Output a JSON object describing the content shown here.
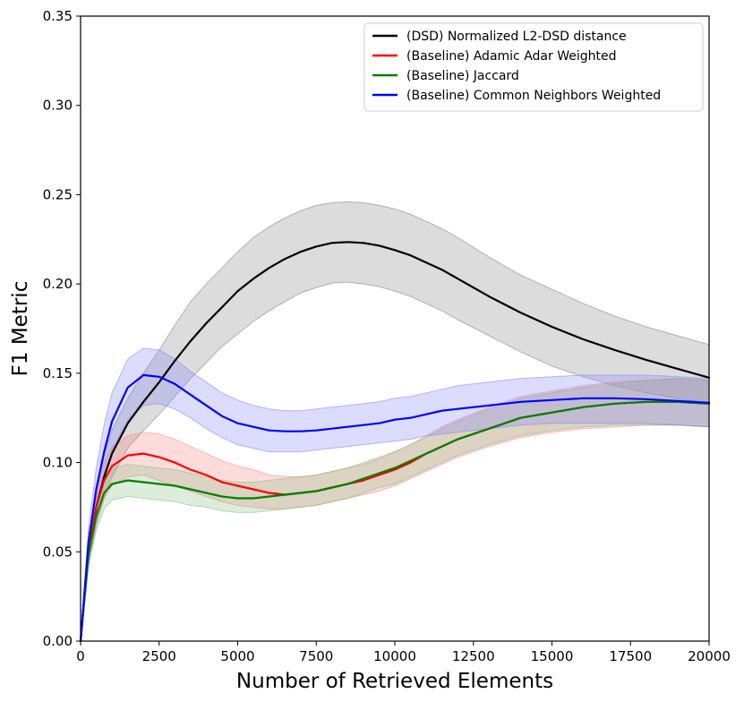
{
  "chart_data": {
    "type": "line",
    "title": "",
    "xlabel": "Number of Retrieved Elements",
    "ylabel": "F1 Metric",
    "xlim": [
      0,
      20000
    ],
    "ylim": [
      0,
      0.35
    ],
    "xticks": [
      0,
      2500,
      5000,
      7500,
      10000,
      12500,
      15000,
      17500,
      20000
    ],
    "yticks": [
      0.0,
      0.05,
      0.1,
      0.15,
      0.2,
      0.25,
      0.3,
      0.35
    ],
    "xtick_labels": [
      "0",
      "2500",
      "5000",
      "7500",
      "10000",
      "12500",
      "15000",
      "17500",
      "20000"
    ],
    "ytick_labels": [
      "0.00",
      "0.05",
      "0.10",
      "0.15",
      "0.20",
      "0.25",
      "0.30",
      "0.35"
    ],
    "grid": false,
    "legend_position": "top-right",
    "series": [
      {
        "name": "(DSD) Normalized L2-DSD distance",
        "color": "#000000",
        "band_color": "#808080",
        "x": [
          0,
          250,
          500,
          750,
          1000,
          1500,
          2000,
          2500,
          3000,
          3500,
          4000,
          4500,
          5000,
          5500,
          6000,
          6500,
          7000,
          7500,
          8000,
          8500,
          9000,
          9500,
          10000,
          10500,
          11000,
          11500,
          12000,
          13000,
          14000,
          15000,
          16000,
          17000,
          18000,
          19000,
          20000
        ],
        "values": [
          0.0,
          0.05,
          0.075,
          0.092,
          0.105,
          0.122,
          0.134,
          0.145,
          0.157,
          0.168,
          0.178,
          0.187,
          0.196,
          0.203,
          0.209,
          0.214,
          0.218,
          0.221,
          0.223,
          0.2235,
          0.223,
          0.2215,
          0.219,
          0.216,
          0.212,
          0.208,
          0.203,
          0.193,
          0.184,
          0.176,
          0.169,
          0.163,
          0.1575,
          0.1525,
          0.1475
        ],
        "lower": [
          0.0,
          0.042,
          0.065,
          0.08,
          0.092,
          0.108,
          0.118,
          0.127,
          0.137,
          0.147,
          0.156,
          0.165,
          0.172,
          0.179,
          0.185,
          0.19,
          0.195,
          0.198,
          0.2005,
          0.201,
          0.2,
          0.1985,
          0.196,
          0.193,
          0.189,
          0.185,
          0.18,
          0.171,
          0.162,
          0.154,
          0.148,
          0.143,
          0.139,
          0.136,
          0.133
        ],
        "upper": [
          0.0,
          0.058,
          0.085,
          0.104,
          0.118,
          0.136,
          0.15,
          0.163,
          0.177,
          0.19,
          0.2,
          0.209,
          0.218,
          0.226,
          0.232,
          0.237,
          0.241,
          0.244,
          0.2455,
          0.246,
          0.2455,
          0.244,
          0.242,
          0.239,
          0.235,
          0.231,
          0.226,
          0.215,
          0.205,
          0.197,
          0.189,
          0.182,
          0.176,
          0.171,
          0.166
        ]
      },
      {
        "name": "(Baseline) Adamic Adar Weighted",
        "color": "#ff0000",
        "band_color": "#ff8080",
        "x": [
          0,
          250,
          500,
          750,
          1000,
          1500,
          2000,
          2500,
          3000,
          3500,
          4000,
          4500,
          5000,
          5500,
          6000,
          6500,
          7000,
          7500,
          8000,
          8500,
          9000,
          9500,
          10000,
          10500,
          11000,
          11500,
          12000,
          13000,
          14000,
          15000,
          16000,
          17000,
          18000,
          19000,
          20000
        ],
        "values": [
          0.0,
          0.05,
          0.075,
          0.09,
          0.098,
          0.104,
          0.105,
          0.103,
          0.1,
          0.096,
          0.093,
          0.089,
          0.087,
          0.085,
          0.083,
          0.082,
          0.083,
          0.084,
          0.086,
          0.088,
          0.09,
          0.093,
          0.096,
          0.1,
          0.105,
          0.109,
          0.113,
          0.119,
          0.125,
          0.128,
          0.131,
          0.133,
          0.134,
          0.134,
          0.133
        ],
        "lower": [
          0.0,
          0.043,
          0.067,
          0.08,
          0.087,
          0.092,
          0.093,
          0.09,
          0.087,
          0.084,
          0.081,
          0.078,
          0.076,
          0.075,
          0.074,
          0.074,
          0.075,
          0.076,
          0.078,
          0.08,
          0.082,
          0.084,
          0.087,
          0.091,
          0.095,
          0.099,
          0.103,
          0.109,
          0.114,
          0.117,
          0.119,
          0.12,
          0.121,
          0.121,
          0.12
        ],
        "upper": [
          0.0,
          0.057,
          0.084,
          0.1,
          0.109,
          0.115,
          0.117,
          0.116,
          0.113,
          0.109,
          0.105,
          0.101,
          0.098,
          0.096,
          0.093,
          0.092,
          0.092,
          0.093,
          0.095,
          0.097,
          0.099,
          0.102,
          0.106,
          0.11,
          0.115,
          0.12,
          0.124,
          0.131,
          0.137,
          0.14,
          0.143,
          0.145,
          0.146,
          0.147,
          0.146
        ]
      },
      {
        "name": "(Baseline) Jaccard",
        "color": "#008000",
        "band_color": "#80c080",
        "x": [
          0,
          250,
          500,
          750,
          1000,
          1500,
          2000,
          2500,
          3000,
          3500,
          4000,
          4500,
          5000,
          5500,
          6000,
          6500,
          7000,
          7500,
          8000,
          8500,
          9000,
          9500,
          10000,
          10500,
          11000,
          11500,
          12000,
          13000,
          14000,
          15000,
          16000,
          17000,
          18000,
          19000,
          20000
        ],
        "values": [
          0.0,
          0.048,
          0.07,
          0.083,
          0.088,
          0.09,
          0.089,
          0.088,
          0.087,
          0.085,
          0.083,
          0.081,
          0.08,
          0.08,
          0.081,
          0.082,
          0.083,
          0.084,
          0.086,
          0.088,
          0.091,
          0.094,
          0.097,
          0.101,
          0.105,
          0.109,
          0.113,
          0.119,
          0.125,
          0.128,
          0.131,
          0.133,
          0.134,
          0.134,
          0.133
        ],
        "lower": [
          0.0,
          0.042,
          0.062,
          0.074,
          0.079,
          0.081,
          0.08,
          0.079,
          0.078,
          0.076,
          0.075,
          0.073,
          0.072,
          0.072,
          0.073,
          0.074,
          0.075,
          0.076,
          0.078,
          0.08,
          0.083,
          0.086,
          0.088,
          0.092,
          0.096,
          0.1,
          0.104,
          0.11,
          0.115,
          0.118,
          0.12,
          0.121,
          0.121,
          0.121,
          0.12
        ],
        "upper": [
          0.0,
          0.054,
          0.078,
          0.092,
          0.097,
          0.099,
          0.098,
          0.097,
          0.096,
          0.094,
          0.092,
          0.09,
          0.089,
          0.089,
          0.09,
          0.091,
          0.092,
          0.093,
          0.095,
          0.097,
          0.1,
          0.103,
          0.106,
          0.11,
          0.114,
          0.119,
          0.123,
          0.13,
          0.136,
          0.139,
          0.142,
          0.144,
          0.146,
          0.147,
          0.146
        ]
      },
      {
        "name": "(Baseline) Common Neighbors Weighted",
        "color": "#0000ff",
        "band_color": "#8080ff",
        "x": [
          0,
          250,
          500,
          750,
          1000,
          1500,
          2000,
          2500,
          3000,
          3500,
          4000,
          4500,
          5000,
          5500,
          6000,
          6500,
          7000,
          7500,
          8000,
          8500,
          9000,
          9500,
          10000,
          10500,
          11000,
          11500,
          12000,
          13000,
          14000,
          15000,
          16000,
          17000,
          18000,
          19000,
          20000
        ],
        "values": [
          0.0,
          0.055,
          0.085,
          0.106,
          0.123,
          0.142,
          0.149,
          0.148,
          0.144,
          0.138,
          0.132,
          0.126,
          0.122,
          0.12,
          0.118,
          0.1175,
          0.1175,
          0.118,
          0.119,
          0.12,
          0.121,
          0.122,
          0.124,
          0.125,
          0.127,
          0.129,
          0.13,
          0.132,
          0.134,
          0.135,
          0.136,
          0.136,
          0.1355,
          0.1345,
          0.1335
        ],
        "lower": [
          0.0,
          0.047,
          0.073,
          0.091,
          0.107,
          0.124,
          0.132,
          0.133,
          0.13,
          0.125,
          0.119,
          0.114,
          0.11,
          0.108,
          0.106,
          0.106,
          0.106,
          0.107,
          0.108,
          0.109,
          0.11,
          0.111,
          0.112,
          0.113,
          0.115,
          0.116,
          0.117,
          0.119,
          0.121,
          0.122,
          0.122,
          0.122,
          0.122,
          0.121,
          0.12
        ],
        "upper": [
          0.0,
          0.063,
          0.097,
          0.121,
          0.139,
          0.158,
          0.164,
          0.163,
          0.158,
          0.151,
          0.145,
          0.139,
          0.135,
          0.132,
          0.13,
          0.129,
          0.129,
          0.13,
          0.131,
          0.132,
          0.133,
          0.134,
          0.136,
          0.137,
          0.139,
          0.141,
          0.143,
          0.145,
          0.147,
          0.148,
          0.149,
          0.149,
          0.149,
          0.148,
          0.147
        ]
      }
    ]
  }
}
